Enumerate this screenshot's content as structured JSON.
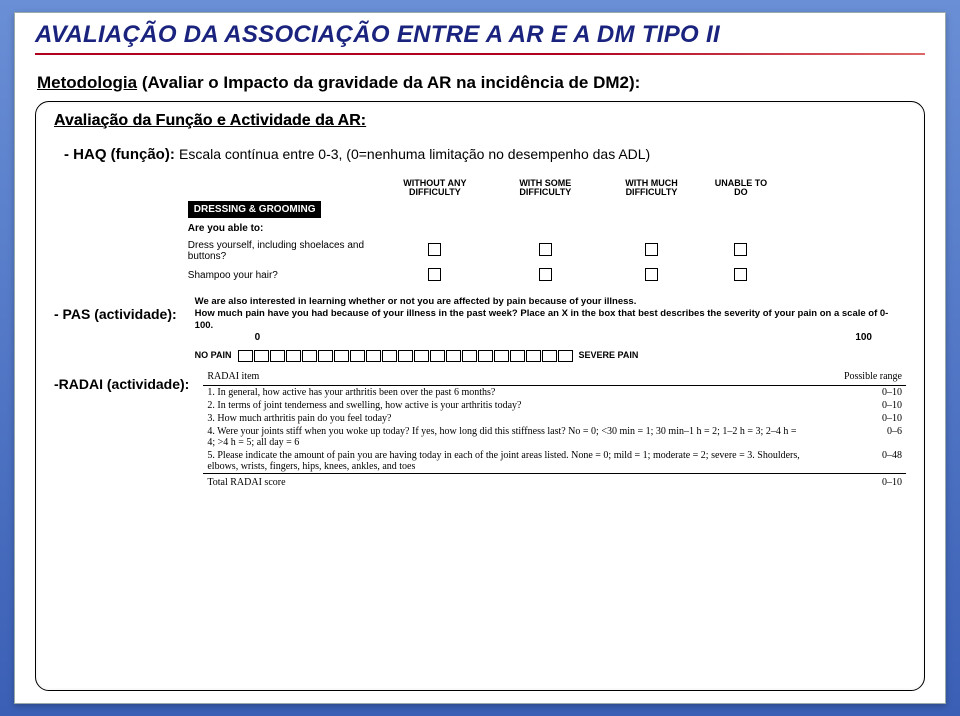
{
  "colors": {
    "title": "#1a237e",
    "rule": "#b00020",
    "bg_top": "#6a8fd6",
    "bg_bottom": "#3a5fb5"
  },
  "title": "AVALIAÇÃO DA ASSOCIAÇÃO ENTRE A AR E A DM TIPO II",
  "meta_underlined": "Metodologia",
  "meta_rest": " (Avaliar o Impacto da gravidade da AR na incidência de DM2):",
  "subhead": "Avaliação da Função e Actividade da AR:",
  "haq": {
    "bullet_bold": "- HAQ (função): ",
    "bullet_sub": "Escala contínua entre 0-3, (0=nenhuma limitação no desempenho das ADL)",
    "section_label": "DRESSING & GROOMING",
    "col_headers": [
      "WITHOUT ANY DIFFICULTY",
      "WITH SOME DIFFICULTY",
      "WITH MUCH DIFFICULTY",
      "UNABLE TO DO"
    ],
    "ask": "Are you able to:",
    "questions": [
      "Dress yourself, including shoelaces and buttons?",
      "Shampoo your hair?"
    ]
  },
  "pas": {
    "left_label": "- PAS (actividade):",
    "line1": "We are also interested in learning whether or not you are affected by pain because of your illness.",
    "line2": "How much pain have you had because of your illness in the past week?  Place an X in the box that best describes the severity of your pain on a scale of 0-100.",
    "num_left": "0",
    "num_right": "100",
    "end_left": "NO PAIN",
    "end_right": "SEVERE PAIN",
    "box_count": 21
  },
  "radai": {
    "left_label": "-RADAI (actividade):",
    "head_left": "RADAI item",
    "head_right": "Possible range",
    "items": [
      {
        "t": "1. In general, how active has your arthritis been over the past 6 months?",
        "r": "0–10"
      },
      {
        "t": "2. In terms of joint tenderness and swelling, how active is your arthritis today?",
        "r": "0–10"
      },
      {
        "t": "3. How much arthritis pain do you feel today?",
        "r": "0–10"
      },
      {
        "t": "4. Were your joints stiff when you woke up today? If yes, how long did this stiffness last? No = 0; <30 min = 1; 30 min–1 h = 2; 1–2 h = 3; 2–4 h = 4; >4 h = 5; all day = 6",
        "r": "0–6"
      },
      {
        "t": "5. Please indicate the amount of pain you are having today in each of the joint areas listed. None = 0; mild = 1; moderate = 2; severe = 3. Shoulders, elbows, wrists, fingers, hips, knees, ankles, and toes",
        "r": "0–48"
      }
    ],
    "total_left": "Total RADAI score",
    "total_right": "0–10"
  }
}
